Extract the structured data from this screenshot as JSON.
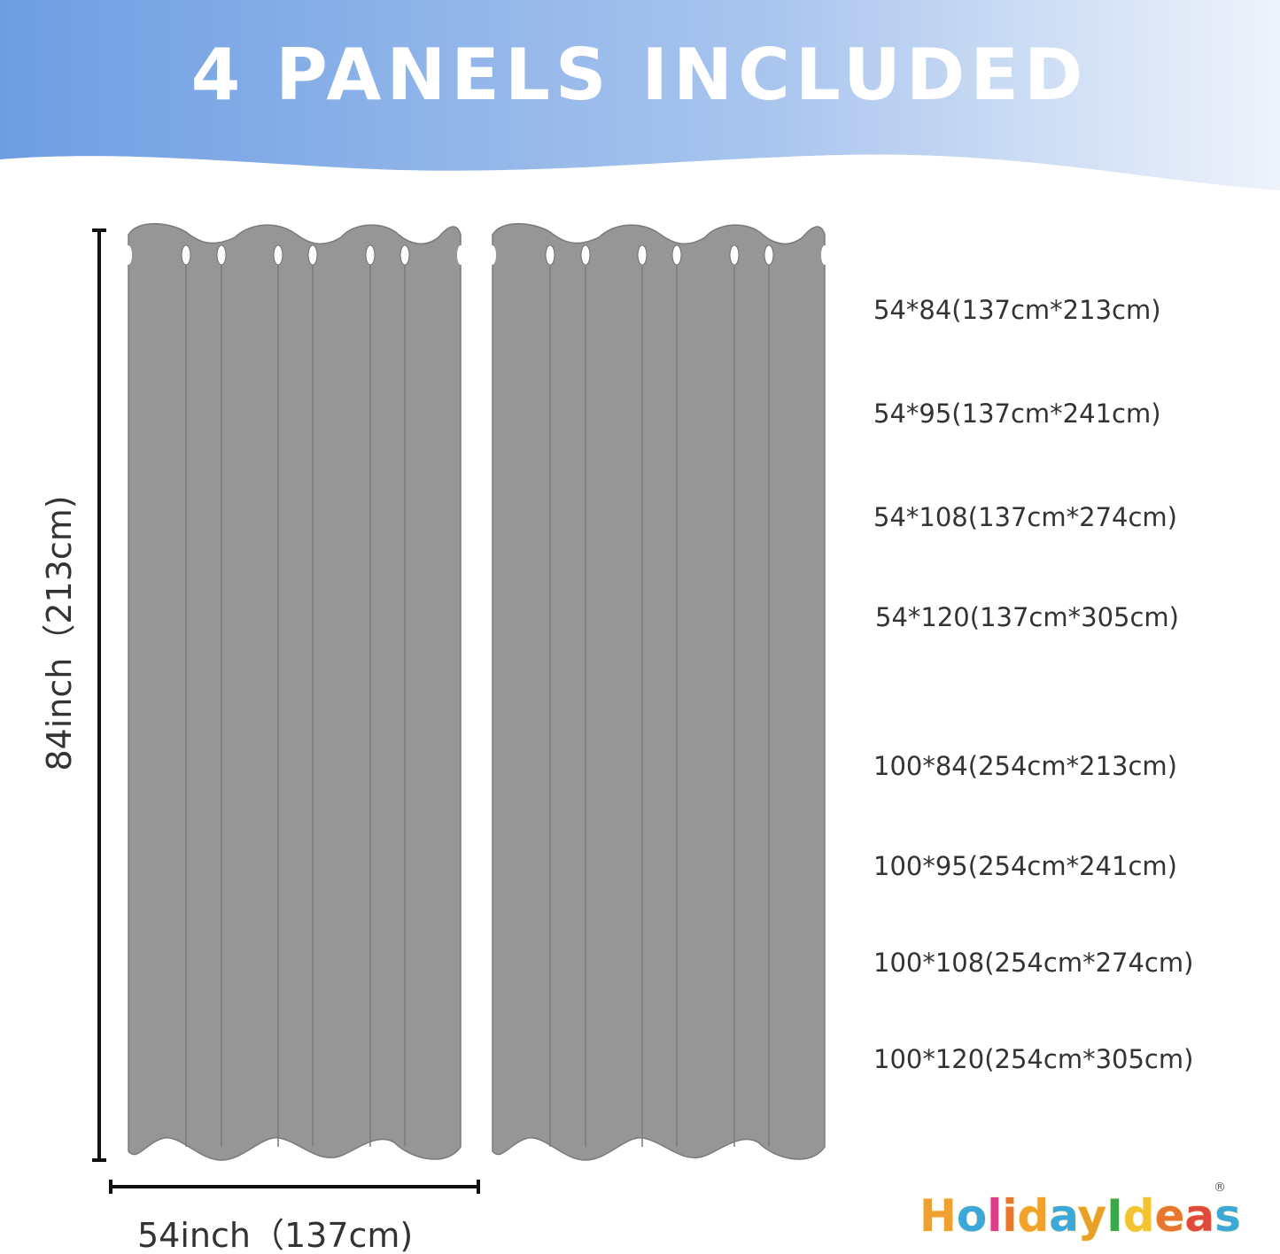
{
  "banner": {
    "title": "4 PANELS INCLUDED",
    "gradient": [
      "#6e9ee2",
      "#eef3fb"
    ]
  },
  "curtain_color": "#969696",
  "panel_count_shown": 2,
  "measurements": {
    "height": "84inch（213cm)",
    "width": "54inch（137cm)"
  },
  "sizes": [
    "54*84(137cm*213cm)",
    "54*95(137cm*241cm)",
    "54*108(137cm*274cm)",
    "54*120(137cm*305cm)",
    "100*84(254cm*213cm)",
    "100*95(254cm*241cm)",
    "100*108(254cm*274cm)",
    "100*120(254cm*305cm)"
  ],
  "logo": {
    "text": "HolidayIdeas",
    "mark": "®",
    "letter_colors": [
      "#f0a030",
      "#3aa8d8",
      "#e03c8a",
      "#e8762e",
      "#f2a228",
      "#3aa8d8",
      "#e8a028",
      "#3aa84a",
      "#f2c431",
      "#e8762e",
      "#e04a3c",
      "#3aa8d8",
      "#3aa84a"
    ]
  }
}
